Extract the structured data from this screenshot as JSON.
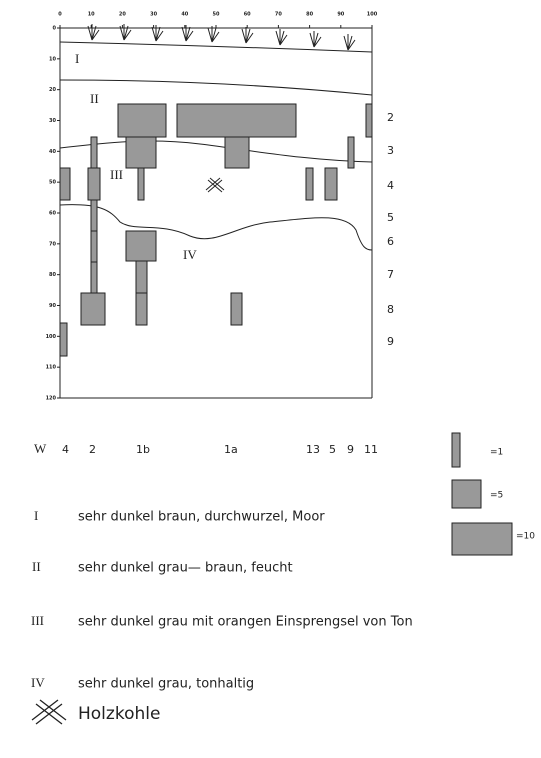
{
  "axes": {
    "xlim": [
      0,
      100
    ],
    "ylim": [
      0,
      120
    ],
    "x_ticks": [
      0,
      10,
      20,
      30,
      40,
      50,
      60,
      70,
      80,
      90,
      100
    ],
    "y_ticks": [
      0,
      10,
      20,
      30,
      40,
      50,
      60,
      70,
      80,
      90,
      100,
      110,
      120
    ]
  },
  "layers": [
    "I",
    "II",
    "III",
    "IV"
  ],
  "right_numbers": [
    "2",
    "3",
    "4",
    "5",
    "6",
    "7",
    "8",
    "9"
  ],
  "w_row": [
    "W",
    "4",
    "2",
    "1b",
    "1a",
    "13",
    "5",
    "9",
    "11"
  ],
  "legend": [
    "=1",
    "=5",
    "=10"
  ],
  "descriptions": [
    {
      "numeral": "I",
      "text": "sehr dunkel braun, durchwurzel, Moor"
    },
    {
      "numeral": "II",
      "text": "sehr dunkel grau— braun, feucht"
    },
    {
      "numeral": "III",
      "text": "sehr dunkel grau mit orangen Einsprengsel von Ton"
    },
    {
      "numeral": "IV",
      "text": "sehr dunkel grau, tonhaltig"
    }
  ],
  "charcoal": "Holzkohle"
}
